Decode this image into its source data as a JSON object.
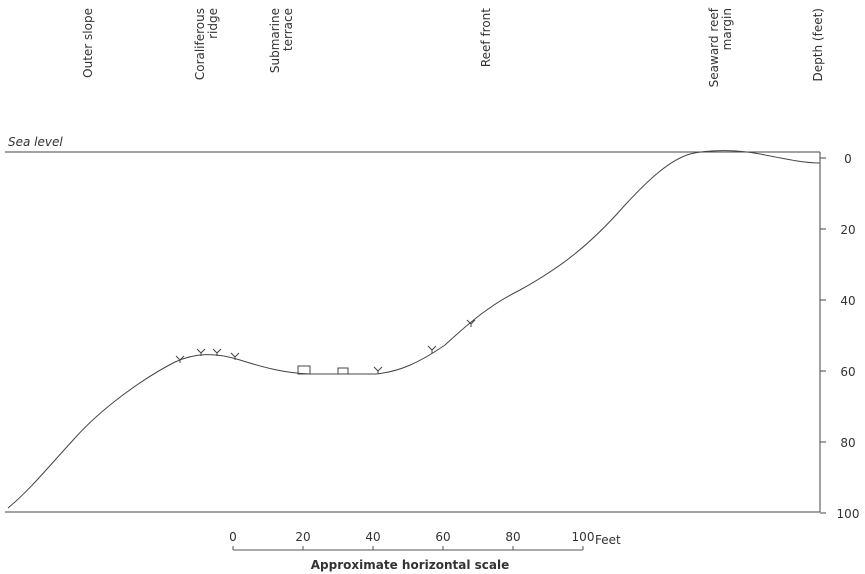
{
  "zones": [
    "Outer slope",
    "Coraliferous ridge",
    "Submarine terrace",
    "Reef front",
    "Seaward reef margin"
  ],
  "sea_level": "Sea level",
  "depth_axis": {
    "title": "Depth (feet)",
    "ticks": [
      0,
      20,
      40,
      60,
      80,
      100
    ]
  },
  "scale": {
    "ticks": [
      0,
      20,
      40,
      60,
      80,
      100
    ],
    "unit": "Feet",
    "caption": "Approximate horizontal scale"
  }
}
